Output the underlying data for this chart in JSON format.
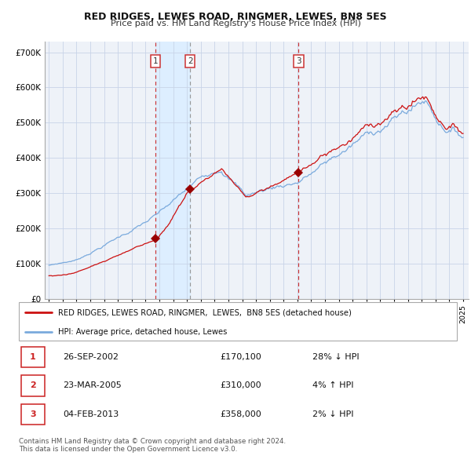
{
  "title": "RED RIDGES, LEWES ROAD, RINGMER, LEWES, BN8 5ES",
  "subtitle": "Price paid vs. HM Land Registry's House Price Index (HPI)",
  "ylim": [
    0,
    730000
  ],
  "yticks": [
    0,
    100000,
    200000,
    300000,
    400000,
    500000,
    600000,
    700000
  ],
  "ytick_labels": [
    "£0",
    "£100K",
    "£200K",
    "£300K",
    "£400K",
    "£500K",
    "£600K",
    "£700K"
  ],
  "hpi_color": "#7aaadd",
  "price_color": "#cc1111",
  "marker_color": "#990000",
  "vline1_color": "#cc3333",
  "vline2_color": "#999999",
  "shaded_color": "#ddeeff",
  "grid_color": "#c8d4e8",
  "bg_color": "#eef2f8",
  "transactions": [
    {
      "label": "1",
      "date_year": 2002.73,
      "price": 170100
    },
    {
      "label": "2",
      "date_year": 2005.23,
      "price": 310000
    },
    {
      "label": "3",
      "date_year": 2013.09,
      "price": 358000
    }
  ],
  "legend_line1": "RED RIDGES, LEWES ROAD, RINGMER,  LEWES,  BN8 5ES (detached house)",
  "legend_line2": "HPI: Average price, detached house, Lewes",
  "table_rows": [
    {
      "num": "1",
      "date": "26-SEP-2002",
      "price": "£170,100",
      "hpi": "28% ↓ HPI"
    },
    {
      "num": "2",
      "date": "23-MAR-2005",
      "price": "£310,000",
      "hpi": "4% ↑ HPI"
    },
    {
      "num": "3",
      "date": "04-FEB-2013",
      "price": "£358,000",
      "hpi": "2% ↓ HPI"
    }
  ],
  "footer": "Contains HM Land Registry data © Crown copyright and database right 2024.\nThis data is licensed under the Open Government Licence v3.0."
}
